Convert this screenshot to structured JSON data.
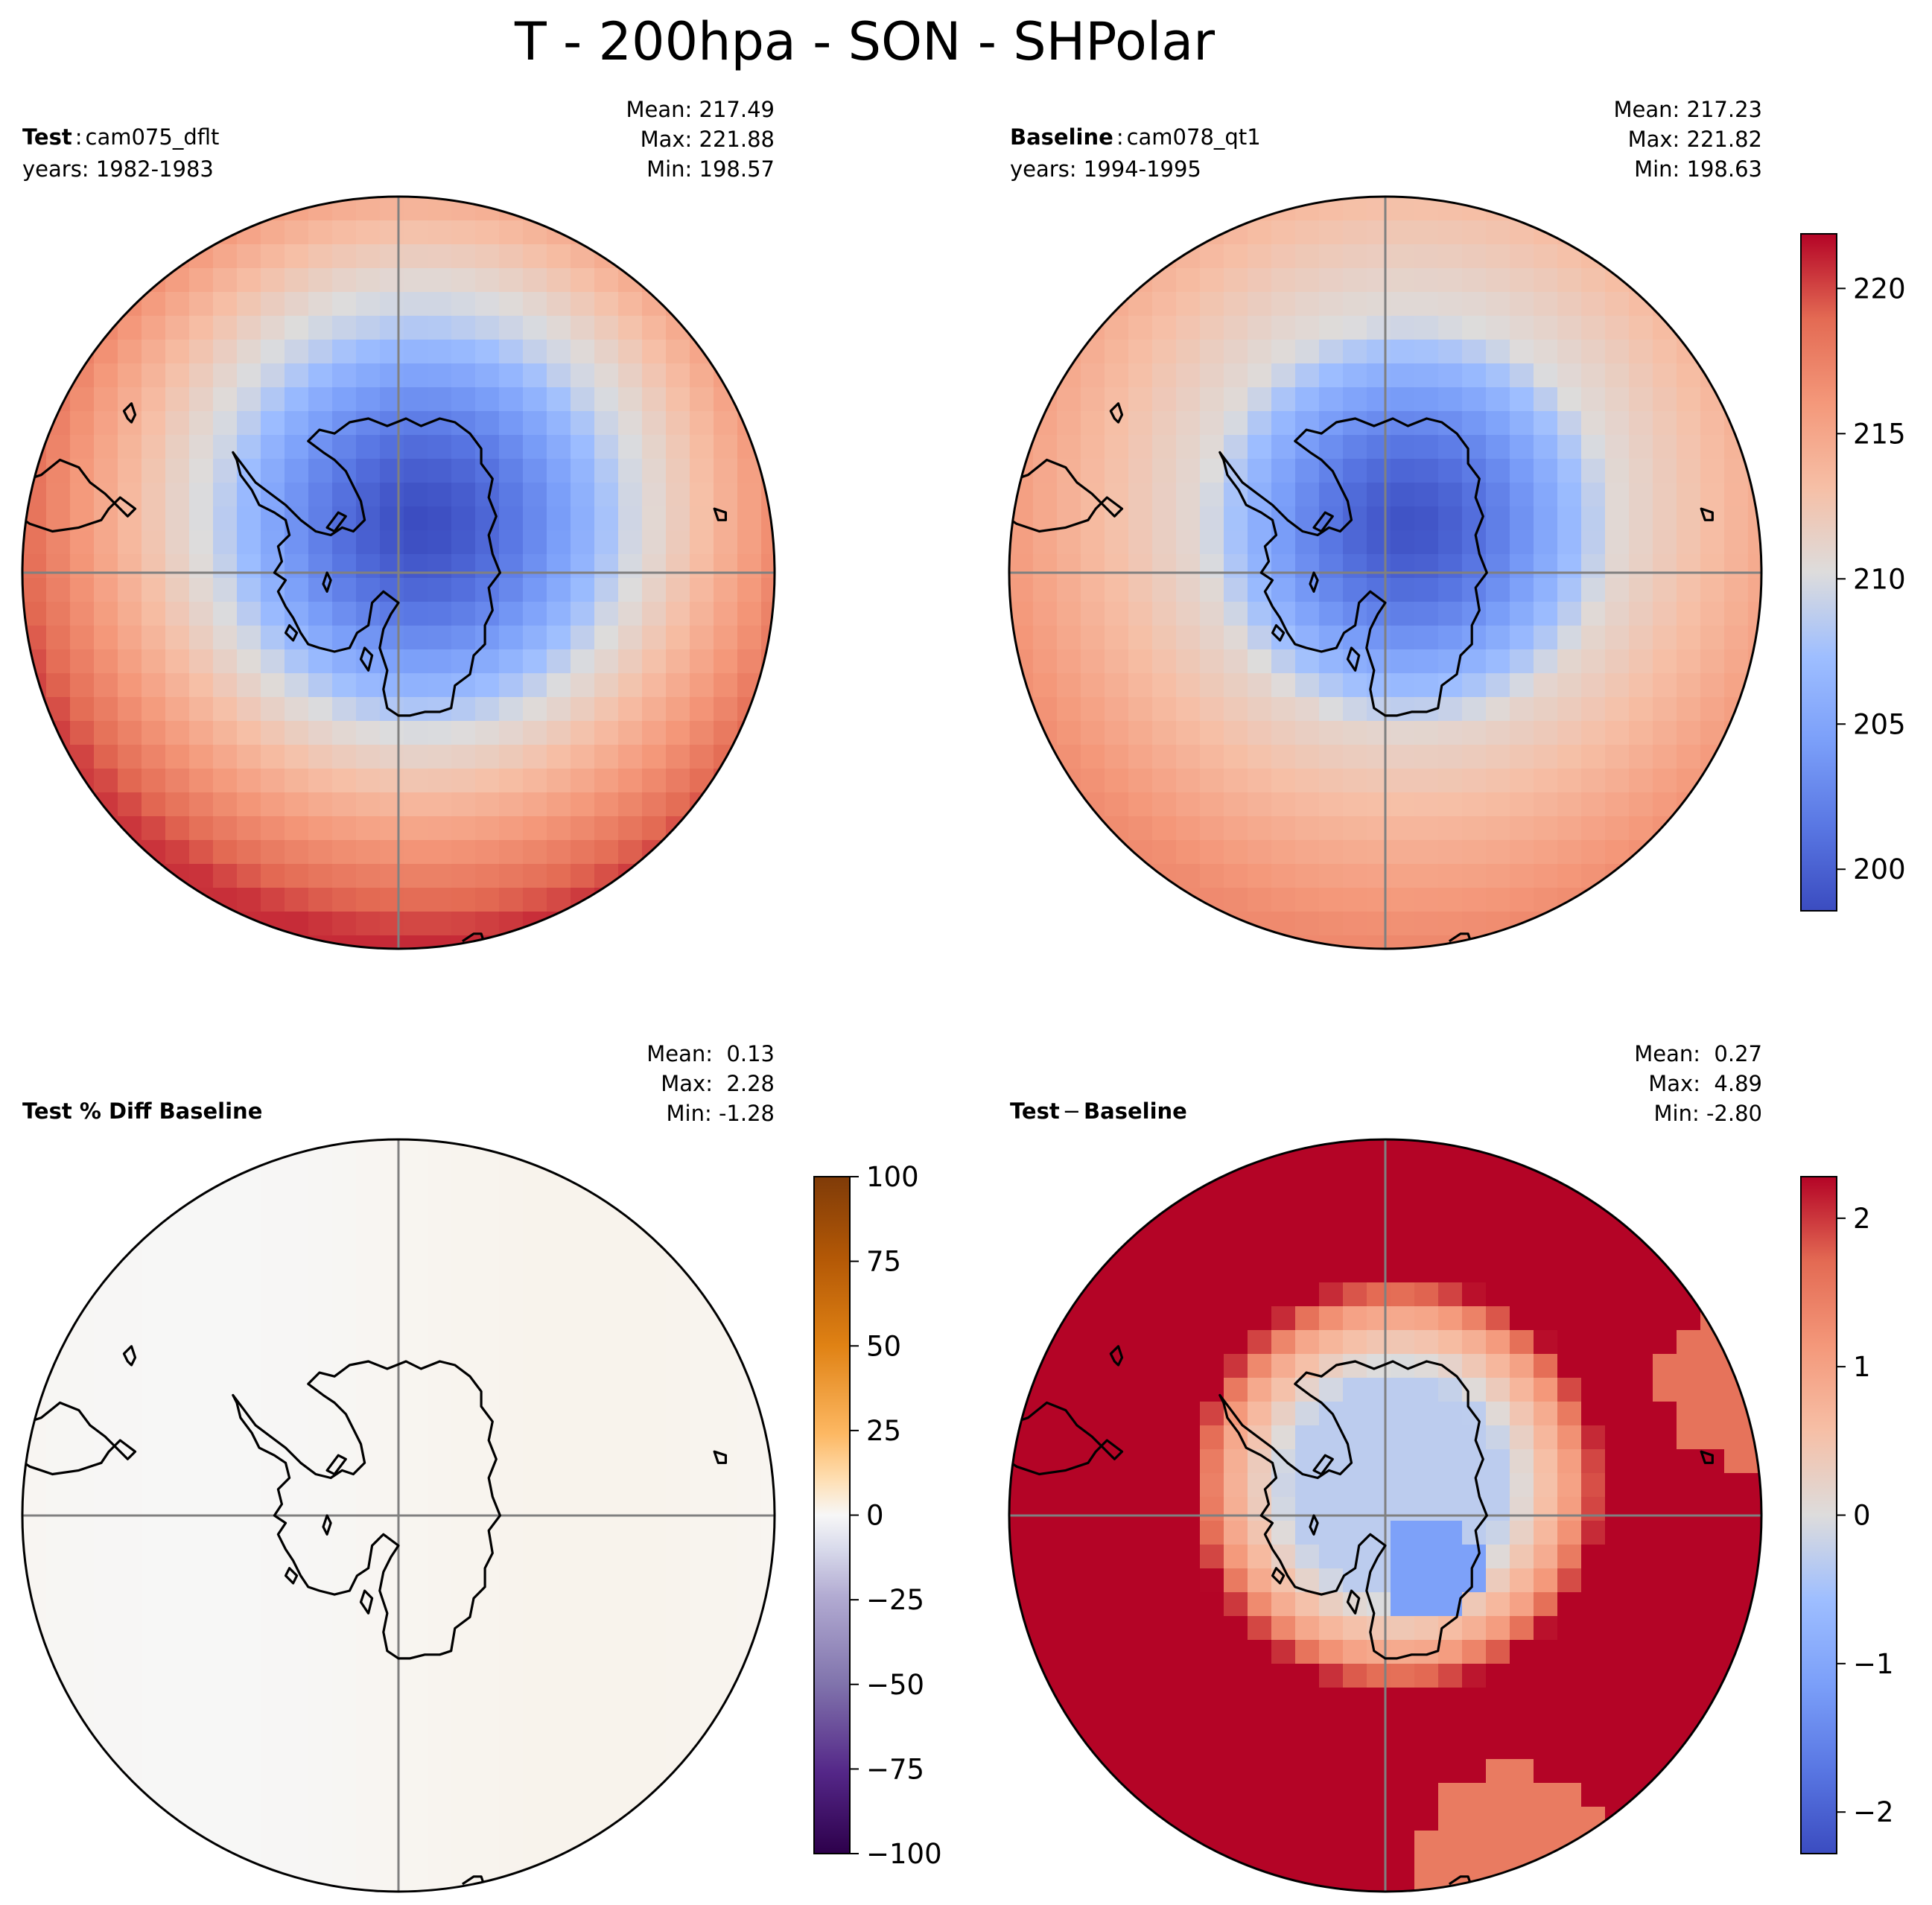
{
  "figure": {
    "title": "T - 200hpa - SON - SHPolar"
  },
  "chart_data": [
    {
      "type": "heatmap",
      "panel": "test",
      "projection": "south-polar-stereographic",
      "title_bold": "Test",
      "title_sep": ":",
      "case_name": "cam075_dflt",
      "years": "years: 1982-1983",
      "stats": {
        "mean": "Mean: 217.49",
        "max": "Max: 221.88",
        "min": "Min: 198.57"
      },
      "field": {
        "pole_value": 198.6,
        "ring1_value": 209.5,
        "edge_value": 219.6,
        "shift_x": 0.06,
        "shift_y": -0.12,
        "asym": 1.2
      },
      "colormap": "coolwarm",
      "vmin": 198.57,
      "vmax": 221.88
    },
    {
      "type": "heatmap",
      "panel": "baseline",
      "projection": "south-polar-stereographic",
      "title_bold": "Baseline",
      "title_sep": ":",
      "case_name": "cam078_qt1",
      "years": "years: 1994-1995",
      "stats": {
        "mean": "Mean: 217.23",
        "max": "Max: 221.82",
        "min": "Min: 198.63"
      },
      "field": {
        "pole_value": 199.0,
        "ring1_value": 210.6,
        "edge_value": 216.2,
        "shift_x": 0.06,
        "shift_y": -0.12,
        "asym": 0.8
      },
      "colormap": "coolwarm",
      "vmin": 198.57,
      "vmax": 221.88,
      "colorbar": {
        "ticks": [
          200,
          205,
          210,
          215,
          220
        ],
        "tick_labels": [
          "200",
          "205",
          "210",
          "215",
          "220"
        ],
        "vmin": 198.57,
        "vmax": 221.88
      }
    },
    {
      "type": "heatmap",
      "panel": "pct_diff",
      "projection": "south-polar-stereographic",
      "title_bold": "Test % Diff Baseline",
      "stats": {
        "mean": "Mean:  0.13",
        "max": "Max:  2.28",
        "min": "Min: -1.28"
      },
      "colormap": "PuOr_r",
      "vmin": -100,
      "vmax": 100,
      "field": {
        "value": 0.13
      },
      "colorbar": {
        "ticks": [
          -100,
          -75,
          -50,
          -25,
          0,
          25,
          50,
          75,
          100
        ],
        "tick_labels": [
          "−100",
          "−75",
          "−50",
          "−25",
          "0",
          "25",
          "50",
          "75",
          "100"
        ],
        "vmin": -100,
        "vmax": 100
      }
    },
    {
      "type": "heatmap",
      "panel": "diff",
      "projection": "south-polar-stereographic",
      "title_bold": "Test",
      "title_sep": "−",
      "title_bold2": "Baseline",
      "stats": {
        "mean": "Mean:  0.27",
        "max": "Max:  4.89",
        "min": "Min: -2.80"
      },
      "colormap": "coolwarm",
      "vmin": -2.28,
      "vmax": 2.28,
      "field": {
        "inner_value": -0.3,
        "mid_value": 1.0,
        "outer_value": 3.2,
        "blue_patch_value": -1.1
      },
      "colorbar": {
        "ticks": [
          -2,
          -1,
          0,
          1,
          2
        ],
        "tick_labels": [
          "−2",
          "−1",
          "0",
          "1",
          "2"
        ],
        "vmin": -2.28,
        "vmax": 2.28
      }
    }
  ],
  "colors": {
    "frame": "#000000",
    "gridline": "#808080",
    "coast": "#000000"
  }
}
